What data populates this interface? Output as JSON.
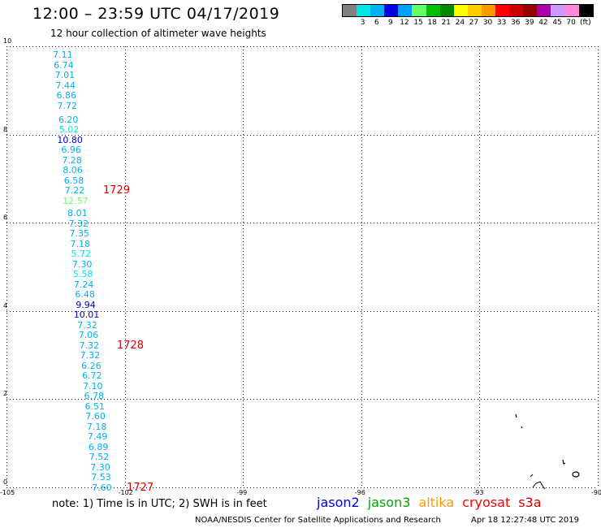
{
  "header": {
    "title": "12:00 – 23:59 UTC 04/17/2019",
    "subtitle": "12 hour collection of altimeter wave heights"
  },
  "legend": {
    "unit": "(ft)",
    "swatches": [
      {
        "label": "",
        "color": "#808080"
      },
      {
        "label": "3",
        "color": "#00e6e6"
      },
      {
        "label": "6",
        "color": "#00b0f0"
      },
      {
        "label": "9",
        "color": "#0000e0"
      },
      {
        "label": "12",
        "color": "#00a0ff"
      },
      {
        "label": "15",
        "color": "#66ff66"
      },
      {
        "label": "18",
        "color": "#00c000"
      },
      {
        "label": "21",
        "color": "#008800"
      },
      {
        "label": "24",
        "color": "#ffff00"
      },
      {
        "label": "27",
        "color": "#ffcc00"
      },
      {
        "label": "30",
        "color": "#ff9900"
      },
      {
        "label": "33",
        "color": "#ff0000"
      },
      {
        "label": "36",
        "color": "#cc0000"
      },
      {
        "label": "39",
        "color": "#990000"
      },
      {
        "label": "42",
        "color": "#aa00aa"
      },
      {
        "label": "45",
        "color": "#cc99ff"
      },
      {
        "label": "70",
        "color": "#ff88dd"
      },
      {
        "label": "",
        "color": "#000000"
      }
    ]
  },
  "axes": {
    "x_ticks": [
      {
        "value": -105,
        "label": "-105"
      },
      {
        "value": -102,
        "label": "-102"
      },
      {
        "value": -99,
        "label": "-99"
      },
      {
        "value": -96,
        "label": "-96"
      },
      {
        "value": -93,
        "label": "-93"
      },
      {
        "value": -90,
        "label": "-90"
      }
    ],
    "y_ticks": [
      {
        "value": 0,
        "label": "0"
      },
      {
        "value": 2,
        "label": "2"
      },
      {
        "value": 4,
        "label": "4"
      },
      {
        "value": 6,
        "label": "6"
      },
      {
        "value": 8,
        "label": "8"
      },
      {
        "value": 10,
        "label": "10"
      }
    ],
    "xlim": [
      -105,
      -90
    ],
    "ylim": [
      0,
      10
    ],
    "grid": true
  },
  "wave_points": [
    {
      "lon": -103.57,
      "lat": 9.79,
      "text": "7.11",
      "color": "#00b0f0"
    },
    {
      "lon": -103.55,
      "lat": 9.56,
      "text": "6.74",
      "color": "#00b0f0"
    },
    {
      "lon": -103.52,
      "lat": 9.33,
      "text": "7.01",
      "color": "#00b0f0"
    },
    {
      "lon": -103.5,
      "lat": 9.1,
      "text": "7.44",
      "color": "#00b0f0"
    },
    {
      "lon": -103.48,
      "lat": 8.87,
      "text": "6.86",
      "color": "#00b0f0"
    },
    {
      "lon": -103.46,
      "lat": 8.64,
      "text": "7.72",
      "color": "#00b0f0"
    },
    {
      "lon": -103.43,
      "lat": 8.33,
      "text": "6.20",
      "color": "#00b0f0"
    },
    {
      "lon": -103.41,
      "lat": 8.1,
      "text": "5.02",
      "color": "#00e6e6"
    },
    {
      "lon": -103.39,
      "lat": 7.87,
      "text": "10.80",
      "color": "#0000e0"
    },
    {
      "lon": -103.36,
      "lat": 7.64,
      "text": "6.96",
      "color": "#00b0f0"
    },
    {
      "lon": -103.34,
      "lat": 7.41,
      "text": "7.28",
      "color": "#00b0f0"
    },
    {
      "lon": -103.32,
      "lat": 7.18,
      "text": "8.06",
      "color": "#00b0f0"
    },
    {
      "lon": -103.29,
      "lat": 6.95,
      "text": "6.58",
      "color": "#00b0f0"
    },
    {
      "lon": -103.27,
      "lat": 6.72,
      "text": "7.22",
      "color": "#00b0f0"
    },
    {
      "lon": -103.25,
      "lat": 6.49,
      "text": "12.57",
      "color": "#66ff66"
    },
    {
      "lon": -103.2,
      "lat": 6.2,
      "text": "8.01",
      "color": "#00b0f0"
    },
    {
      "lon": -103.17,
      "lat": 5.97,
      "text": "7.32",
      "color": "#00b0f0"
    },
    {
      "lon": -103.15,
      "lat": 5.74,
      "text": "7.35",
      "color": "#00b0f0"
    },
    {
      "lon": -103.13,
      "lat": 5.51,
      "text": "7.18",
      "color": "#00b0f0"
    },
    {
      "lon": -103.11,
      "lat": 5.28,
      "text": "5.72",
      "color": "#00e6e6"
    },
    {
      "lon": -103.08,
      "lat": 5.05,
      "text": "7.30",
      "color": "#00b0f0"
    },
    {
      "lon": -103.06,
      "lat": 4.82,
      "text": "5.58",
      "color": "#00e6e6"
    },
    {
      "lon": -103.04,
      "lat": 4.59,
      "text": "7.24",
      "color": "#00b0f0"
    },
    {
      "lon": -103.01,
      "lat": 4.36,
      "text": "6.48",
      "color": "#00b0f0"
    },
    {
      "lon": -102.99,
      "lat": 4.13,
      "text": "9.94",
      "color": "#0000e0"
    },
    {
      "lon": -102.97,
      "lat": 3.9,
      "text": "10.01",
      "color": "#0000e0"
    },
    {
      "lon": -102.95,
      "lat": 3.67,
      "text": "7.32",
      "color": "#00b0f0"
    },
    {
      "lon": -102.92,
      "lat": 3.44,
      "text": "7.06",
      "color": "#00b0f0"
    },
    {
      "lon": -102.9,
      "lat": 3.21,
      "text": "7.32",
      "color": "#00b0f0"
    },
    {
      "lon": -102.88,
      "lat": 2.98,
      "text": "7.32",
      "color": "#00b0f0"
    },
    {
      "lon": -102.85,
      "lat": 2.75,
      "text": "6.26",
      "color": "#00b0f0"
    },
    {
      "lon": -102.83,
      "lat": 2.52,
      "text": "6.72",
      "color": "#00b0f0"
    },
    {
      "lon": -102.81,
      "lat": 2.29,
      "text": "7.10",
      "color": "#00b0f0"
    },
    {
      "lon": -102.78,
      "lat": 2.06,
      "text": "6.78",
      "color": "#00b0f0"
    },
    {
      "lon": -102.76,
      "lat": 1.83,
      "text": "6.51",
      "color": "#00b0f0"
    },
    {
      "lon": -102.74,
      "lat": 1.6,
      "text": "7.60",
      "color": "#00b0f0"
    },
    {
      "lon": -102.71,
      "lat": 1.37,
      "text": "7.18",
      "color": "#00b0f0"
    },
    {
      "lon": -102.69,
      "lat": 1.14,
      "text": "7.49",
      "color": "#00b0f0"
    },
    {
      "lon": -102.67,
      "lat": 0.91,
      "text": "6.89",
      "color": "#00b0f0"
    },
    {
      "lon": -102.65,
      "lat": 0.68,
      "text": "7.52",
      "color": "#00b0f0"
    },
    {
      "lon": -102.62,
      "lat": 0.45,
      "text": "7.30",
      "color": "#00b0f0"
    },
    {
      "lon": -102.6,
      "lat": 0.22,
      "text": "7.53",
      "color": "#00b0f0"
    },
    {
      "lon": -102.58,
      "lat": -0.01,
      "text": "7.60",
      "color": "#00b0f0"
    }
  ],
  "pass_labels": [
    {
      "lon": -102.55,
      "lat": 6.72,
      "text": "1729"
    },
    {
      "lon": -102.2,
      "lat": 3.21,
      "text": "1728"
    },
    {
      "lon": -101.95,
      "lat": -0.01,
      "text": "1727"
    }
  ],
  "notes": {
    "note": "note: 1) Time is in UTC; 2) SWH is in feet",
    "footer_left": "NOAA/NESDIS Center for Satellite Applications and Research",
    "footer_right": "Apr 18 12:27:48 UTC 2019"
  },
  "satellites": [
    {
      "name": "jason2",
      "color": "#0000e0"
    },
    {
      "name": "jason3",
      "color": "#00aa00"
    },
    {
      "name": "altika",
      "color": "#ff9900"
    },
    {
      "name": "cryosat",
      "color": "#ff0000"
    },
    {
      "name": "s3a",
      "color": "#cc0000"
    }
  ]
}
